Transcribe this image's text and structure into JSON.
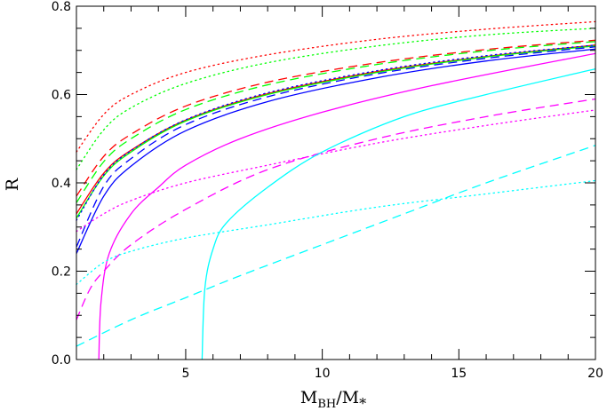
{
  "chart_data": {
    "type": "line",
    "xlabel": "M_BH/M_*",
    "xlabel_main": "M",
    "xlabel_sub1": "BH",
    "xlabel_slash": "/M",
    "xlabel_sub2": "*",
    "ylabel": "R",
    "xlim": [
      1,
      20
    ],
    "ylim": [
      0,
      0.8
    ],
    "x_ticks": [
      5,
      10,
      15,
      20
    ],
    "y_ticks": [
      0.0,
      0.2,
      0.4,
      0.6,
      0.8
    ],
    "x_tick_labels": [
      "5",
      "10",
      "15",
      "20"
    ],
    "y_tick_labels": [
      "0.0",
      "0.2",
      "0.4",
      "0.6",
      "0.8"
    ],
    "grid": false,
    "legend": "none",
    "series": [
      {
        "color": "#ff0000",
        "style": "dotted",
        "x": [
          1,
          2,
          3,
          5,
          8,
          12,
          16,
          20
        ],
        "y": [
          0.47,
          0.555,
          0.6,
          0.65,
          0.69,
          0.725,
          0.748,
          0.765
        ]
      },
      {
        "color": "#00ff00",
        "style": "dotted",
        "x": [
          1,
          2,
          3,
          5,
          8,
          12,
          16,
          20
        ],
        "y": [
          0.43,
          0.52,
          0.57,
          0.625,
          0.672,
          0.71,
          0.735,
          0.75
        ]
      },
      {
        "color": "#ff0000",
        "style": "dashed",
        "x": [
          1,
          2,
          3,
          5,
          8,
          12,
          16,
          20
        ],
        "y": [
          0.37,
          0.46,
          0.51,
          0.574,
          0.628,
          0.672,
          0.702,
          0.723
        ]
      },
      {
        "color": "#00ff00",
        "style": "dashed",
        "x": [
          1,
          2,
          3,
          5,
          8,
          12,
          16,
          20
        ],
        "y": [
          0.355,
          0.448,
          0.5,
          0.566,
          0.622,
          0.668,
          0.699,
          0.72
        ]
      },
      {
        "color": "#ff0000",
        "style": "solid",
        "x": [
          1,
          2,
          3,
          5,
          8,
          12,
          16,
          20
        ],
        "y": [
          0.33,
          0.422,
          0.474,
          0.542,
          0.602,
          0.652,
          0.686,
          0.712
        ]
      },
      {
        "color": "#00ff00",
        "style": "solid",
        "x": [
          1,
          2,
          3,
          5,
          8,
          12,
          16,
          20
        ],
        "y": [
          0.32,
          0.416,
          0.47,
          0.54,
          0.6,
          0.65,
          0.685,
          0.71
        ]
      },
      {
        "color": "#0000ff",
        "style": "dotted",
        "x": [
          1,
          2,
          3,
          5,
          8,
          12,
          16,
          20
        ],
        "y": [
          0.315,
          0.418,
          0.473,
          0.543,
          0.604,
          0.654,
          0.688,
          0.712
        ]
      },
      {
        "color": "#0000ff",
        "style": "dashed",
        "x": [
          1,
          2,
          3,
          5,
          8,
          12,
          16,
          20
        ],
        "y": [
          0.255,
          0.392,
          0.455,
          0.532,
          0.595,
          0.647,
          0.682,
          0.708
        ]
      },
      {
        "color": "#0000ff",
        "style": "solid",
        "x": [
          1,
          2,
          3,
          5,
          8,
          12,
          16,
          20
        ],
        "y": [
          0.24,
          0.37,
          0.438,
          0.518,
          0.584,
          0.638,
          0.676,
          0.703
        ]
      },
      {
        "color": "#ff00ff",
        "style": "solid",
        "x": [
          1.82,
          1.9,
          2.2,
          3,
          4,
          5,
          7,
          10,
          14,
          20
        ],
        "y": [
          0.0,
          0.13,
          0.24,
          0.33,
          0.39,
          0.44,
          0.5,
          0.56,
          0.62,
          0.693
        ]
      },
      {
        "color": "#ff00ff",
        "style": "dashed",
        "x": [
          1,
          1.5,
          2,
          3,
          5,
          8,
          12,
          16,
          20
        ],
        "y": [
          0.09,
          0.16,
          0.2,
          0.26,
          0.34,
          0.43,
          0.5,
          0.55,
          0.59
        ]
      },
      {
        "color": "#ff00ff",
        "style": "dotted",
        "x": [
          1,
          2,
          3,
          5,
          8,
          12,
          16,
          20
        ],
        "y": [
          0.29,
          0.33,
          0.36,
          0.4,
          0.44,
          0.49,
          0.53,
          0.565
        ]
      },
      {
        "color": "#00ffff",
        "style": "solid",
        "x": [
          5.6,
          5.7,
          6,
          6.5,
          8,
          10,
          13,
          16,
          20
        ],
        "y": [
          0.0,
          0.16,
          0.25,
          0.31,
          0.39,
          0.47,
          0.55,
          0.6,
          0.658
        ]
      },
      {
        "color": "#00ffff",
        "style": "dashed",
        "x": [
          1,
          3,
          5,
          7,
          10,
          13,
          16,
          20
        ],
        "y": [
          0.03,
          0.09,
          0.14,
          0.19,
          0.26,
          0.33,
          0.4,
          0.485
        ]
      },
      {
        "color": "#00ffff",
        "style": "dotted",
        "x": [
          1,
          2,
          3,
          5,
          8,
          12,
          16,
          20
        ],
        "y": [
          0.17,
          0.22,
          0.245,
          0.275,
          0.305,
          0.345,
          0.375,
          0.405
        ]
      }
    ]
  }
}
